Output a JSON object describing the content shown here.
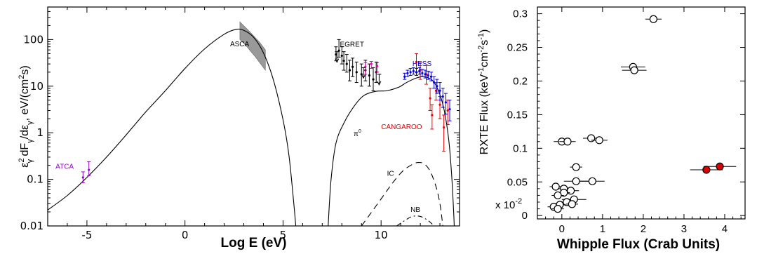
{
  "chart_data": [
    {
      "type": "line",
      "xlabel": "Log E (eV)",
      "ylabel_parts": [
        "ε",
        "2",
        "γ",
        " dF",
        "γ",
        "/dε",
        "γ",
        ",   eV/(cm",
        "2",
        "s)"
      ],
      "x_scale": "linear",
      "y_scale": "log",
      "xlim": [
        -7,
        14
      ],
      "ylim": [
        0.01,
        500
      ],
      "x_ticks": [
        -5,
        0,
        5,
        10
      ],
      "x_tick_labels": [
        "-5",
        "0",
        "5",
        "10"
      ],
      "y_ticks": [
        0.01,
        0.1,
        1,
        10,
        100
      ],
      "y_tick_labels": [
        "0.01",
        "0.1",
        "1",
        "10",
        "100"
      ],
      "annotations": [
        {
          "text": "ASCA",
          "x": 2.3,
          "y": 72,
          "color": "#000000"
        },
        {
          "text": "EGRET",
          "x": 7.9,
          "y": 70,
          "color": "#000000"
        },
        {
          "text": "HESS",
          "x": 11.6,
          "y": 27,
          "color": "#0000ee"
        },
        {
          "text": "π",
          "sup": "0",
          "x": 8.6,
          "y": 0.85,
          "color": "#000000"
        },
        {
          "text": "CANGAROO",
          "x": 10.0,
          "y": 1.2,
          "color": "#ee0000"
        },
        {
          "text": "IC",
          "x": 10.3,
          "y": 0.12,
          "color": "#000000"
        },
        {
          "text": "NB",
          "x": 11.5,
          "y": 0.02,
          "color": "#000000"
        },
        {
          "text": "ATCA",
          "x": -6.6,
          "y": 0.17,
          "color": "#9900cc"
        }
      ],
      "series": [
        {
          "style": "solid",
          "points": [
            [
              -7,
              0.022
            ],
            [
              -6,
              0.045
            ],
            [
              -5,
              0.11
            ],
            [
              -4,
              0.3
            ],
            [
              -3,
              0.9
            ],
            [
              -2,
              2.8
            ],
            [
              -1,
              8
            ],
            [
              0,
              24
            ],
            [
              1,
              63
            ],
            [
              2,
              130
            ],
            [
              2.6,
              165
            ],
            [
              3,
              158
            ],
            [
              3.5,
              112
            ],
            [
              4,
              52
            ],
            [
              4.5,
              14
            ],
            [
              5,
              1.9
            ],
            [
              5.3,
              0.33
            ],
            [
              5.55,
              0.03
            ],
            [
              5.65,
              0.01
            ]
          ]
        },
        {
          "style": "solid",
          "points": [
            [
              7.3,
              0.01
            ],
            [
              7.45,
              0.1
            ],
            [
              7.7,
              0.6
            ],
            [
              8.1,
              1.6
            ],
            [
              8.6,
              3.6
            ],
            [
              9.1,
              6.2
            ],
            [
              9.7,
              7.7
            ],
            [
              10.3,
              8.0
            ],
            [
              10.9,
              9.5
            ],
            [
              11.3,
              12
            ],
            [
              11.8,
              15
            ],
            [
              12.2,
              16
            ],
            [
              12.6,
              13.5
            ],
            [
              12.9,
              8.5
            ],
            [
              13.2,
              3.3
            ],
            [
              13.45,
              0.7
            ],
            [
              13.6,
              0.12
            ],
            [
              13.7,
              0.02
            ],
            [
              13.73,
              0.01
            ]
          ]
        },
        {
          "style": "dashed",
          "points": [
            [
              9.0,
              0.01
            ],
            [
              9.4,
              0.017
            ],
            [
              10.0,
              0.038
            ],
            [
              10.6,
              0.085
            ],
            [
              11.1,
              0.15
            ],
            [
              11.6,
              0.21
            ],
            [
              11.9,
              0.23
            ],
            [
              12.2,
              0.215
            ],
            [
              12.5,
              0.15
            ],
            [
              12.8,
              0.07
            ],
            [
              13.0,
              0.03
            ],
            [
              13.15,
              0.01
            ]
          ]
        },
        {
          "style": "dashdot",
          "points": [
            [
              10.8,
              0.01
            ],
            [
              11.2,
              0.013
            ],
            [
              11.6,
              0.016
            ],
            [
              12.0,
              0.016
            ],
            [
              12.4,
              0.013
            ],
            [
              12.7,
              0.01
            ]
          ]
        }
      ],
      "bands": [
        {
          "name": "ASCA",
          "color": "#999999",
          "upper": [
            [
              2.8,
              240
            ],
            [
              3.3,
              148
            ],
            [
              3.8,
              88
            ],
            [
              4.1,
              60
            ]
          ],
          "lower": [
            [
              4.1,
              22
            ],
            [
              3.6,
              42
            ],
            [
              3.1,
              75
            ],
            [
              2.8,
              100
            ]
          ]
        }
      ],
      "error_bars": [
        {
          "color": "#9900cc",
          "points": [
            [
              -5.2,
              0.11,
              0.085,
              0.145
            ],
            [
              -4.9,
              0.16,
              0.12,
              0.24
            ]
          ]
        },
        {
          "color": "#000000",
          "points": [
            [
              7.7,
              48,
              35,
              70
            ],
            [
              7.85,
              58,
              42,
              100
            ],
            [
              8.0,
              45,
              30,
              70
            ],
            [
              8.1,
              35,
              22,
              55
            ],
            [
              8.25,
              30,
              20,
              48
            ],
            [
              8.4,
              22,
              13,
              36
            ],
            [
              8.55,
              26,
              16,
              40
            ],
            [
              8.75,
              20,
              12,
              33
            ],
            [
              9.0,
              18,
              10,
              30
            ],
            [
              9.2,
              22,
              13,
              36
            ],
            [
              9.4,
              17,
              10,
              30
            ],
            [
              9.6,
              14,
              8,
              25
            ],
            [
              9.75,
              20,
              12,
              33
            ]
          ]
        },
        {
          "color": "#ee00aa",
          "points": [
            [
              9.2,
              26,
              18,
              32
            ],
            [
              9.5,
              30,
              24,
              34
            ],
            [
              9.8,
              27,
              20,
              32
            ]
          ]
        },
        {
          "color": "#ee0000",
          "points": [
            [
              11.8,
              33,
              20,
              50
            ],
            [
              12.0,
              22,
              14,
              32
            ],
            [
              12.3,
              18,
              11,
              28
            ],
            [
              12.5,
              5.5,
              3,
              9
            ],
            [
              12.6,
              2.4,
              1.2,
              4
            ],
            [
              12.8,
              8,
              5,
              12
            ],
            [
              13.0,
              4,
              2,
              6
            ],
            [
              13.2,
              1.3,
              0.4,
              2.4
            ],
            [
              13.4,
              3,
              1.5,
              5
            ]
          ]
        },
        {
          "color": "#0000ee",
          "points": [
            [
              11.2,
              16,
              14,
              19
            ],
            [
              11.35,
              19,
              16,
              22
            ],
            [
              11.5,
              20,
              17,
              24
            ],
            [
              11.65,
              21,
              18,
              25
            ],
            [
              11.8,
              20,
              17,
              24
            ],
            [
              11.95,
              21,
              18,
              25
            ],
            [
              12.1,
              19,
              16,
              23
            ],
            [
              12.25,
              18,
              15,
              22
            ],
            [
              12.4,
              17,
              14,
              21
            ],
            [
              12.55,
              16,
              13,
              20
            ],
            [
              12.7,
              12,
              9,
              16
            ],
            [
              12.85,
              10,
              7,
              14
            ],
            [
              13.0,
              8,
              5,
              12
            ],
            [
              13.15,
              6,
              3.5,
              9
            ],
            [
              13.3,
              4.5,
              2.5,
              7
            ],
            [
              13.5,
              3.2,
              1.8,
              5
            ]
          ]
        }
      ],
      "upper_limits": [
        {
          "color": "#000000",
          "points": [
            [
              7.75,
              55
            ],
            [
              9.1,
              25
            ],
            [
              9.9,
              18
            ]
          ]
        }
      ]
    },
    {
      "type": "scatter",
      "xlabel": "Whipple Flux (Crab Units)",
      "ylabel_parts": [
        "RXTE Flux (keV",
        "-1",
        "cm",
        "-2",
        "s",
        "-1",
        ")"
      ],
      "multiplier_label": "x 10",
      "multiplier_exp": "-2",
      "xlim": [
        -0.6,
        4.5
      ],
      "ylim": [
        -0.005,
        0.31
      ],
      "x_ticks": [
        0,
        1,
        2,
        3,
        4
      ],
      "x_tick_labels": [
        "0",
        "1",
        "2",
        "3",
        "4"
      ],
      "y_ticks": [
        0,
        0.05,
        0.1,
        0.15,
        0.2,
        0.25,
        0.3
      ],
      "y_tick_labels": [
        "0",
        "0.05",
        "0.1",
        "0.15",
        "0.2",
        "0.25",
        "0.3"
      ],
      "series": [
        {
          "color": "#ffffff",
          "points": [
            [
              2.25,
              0.292,
              0.2
            ],
            [
              1.75,
              0.221,
              0.3
            ],
            [
              1.78,
              0.216,
              0.3
            ],
            [
              0.72,
              0.115,
              0.2
            ],
            [
              0.92,
              0.112,
              0.2
            ],
            [
              0.0,
              0.11,
              0.2
            ],
            [
              0.14,
              0.11,
              0.2
            ],
            [
              0.35,
              0.072,
              0.15
            ],
            [
              0.35,
              0.051,
              0.3
            ],
            [
              0.75,
              0.051,
              0.3
            ],
            [
              -0.15,
              0.043,
              0.15
            ],
            [
              0.05,
              0.04,
              0.15
            ],
            [
              0.22,
              0.037,
              0.2
            ],
            [
              0.05,
              0.034,
              0.15
            ],
            [
              -0.1,
              0.03,
              0.15
            ],
            [
              0.3,
              0.024,
              0.3
            ],
            [
              0.12,
              0.02,
              0.15
            ],
            [
              0.25,
              0.017,
              0.15
            ],
            [
              -0.05,
              0.016,
              0.15
            ],
            [
              -0.2,
              0.013,
              0.15
            ],
            [
              -0.1,
              0.01,
              0.15
            ]
          ]
        },
        {
          "color": "#dd0000",
          "points": [
            [
              3.55,
              0.068,
              0.4
            ],
            [
              3.88,
              0.073,
              0.4
            ]
          ]
        }
      ]
    }
  ]
}
